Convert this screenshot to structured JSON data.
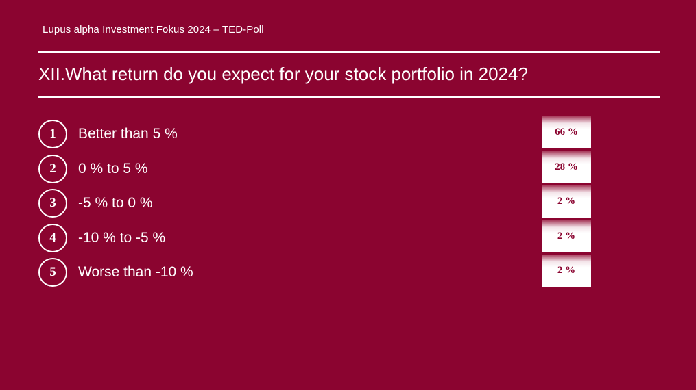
{
  "header": {
    "subtitle": "Lupus alpha Investment Fokus 2024 – TED-Poll"
  },
  "question": {
    "title": "XII.What return do you expect for your stock portfolio in 2024?"
  },
  "options": [
    {
      "number": "1",
      "label": "Better than 5 %",
      "result": "66 %"
    },
    {
      "number": "2",
      "label": "0 % to 5 %",
      "result": "28 %"
    },
    {
      "number": "3",
      "label": "-5 % to 0 %",
      "result": "2 %"
    },
    {
      "number": "4",
      "label": "-10 % to -5 %",
      "result": "2 %"
    },
    {
      "number": "5",
      "label": "Worse than -10 %",
      "result": "2 %"
    }
  ],
  "colors": {
    "background": "#8b0430",
    "text": "#ffffff",
    "result_text": "#8b0430"
  }
}
